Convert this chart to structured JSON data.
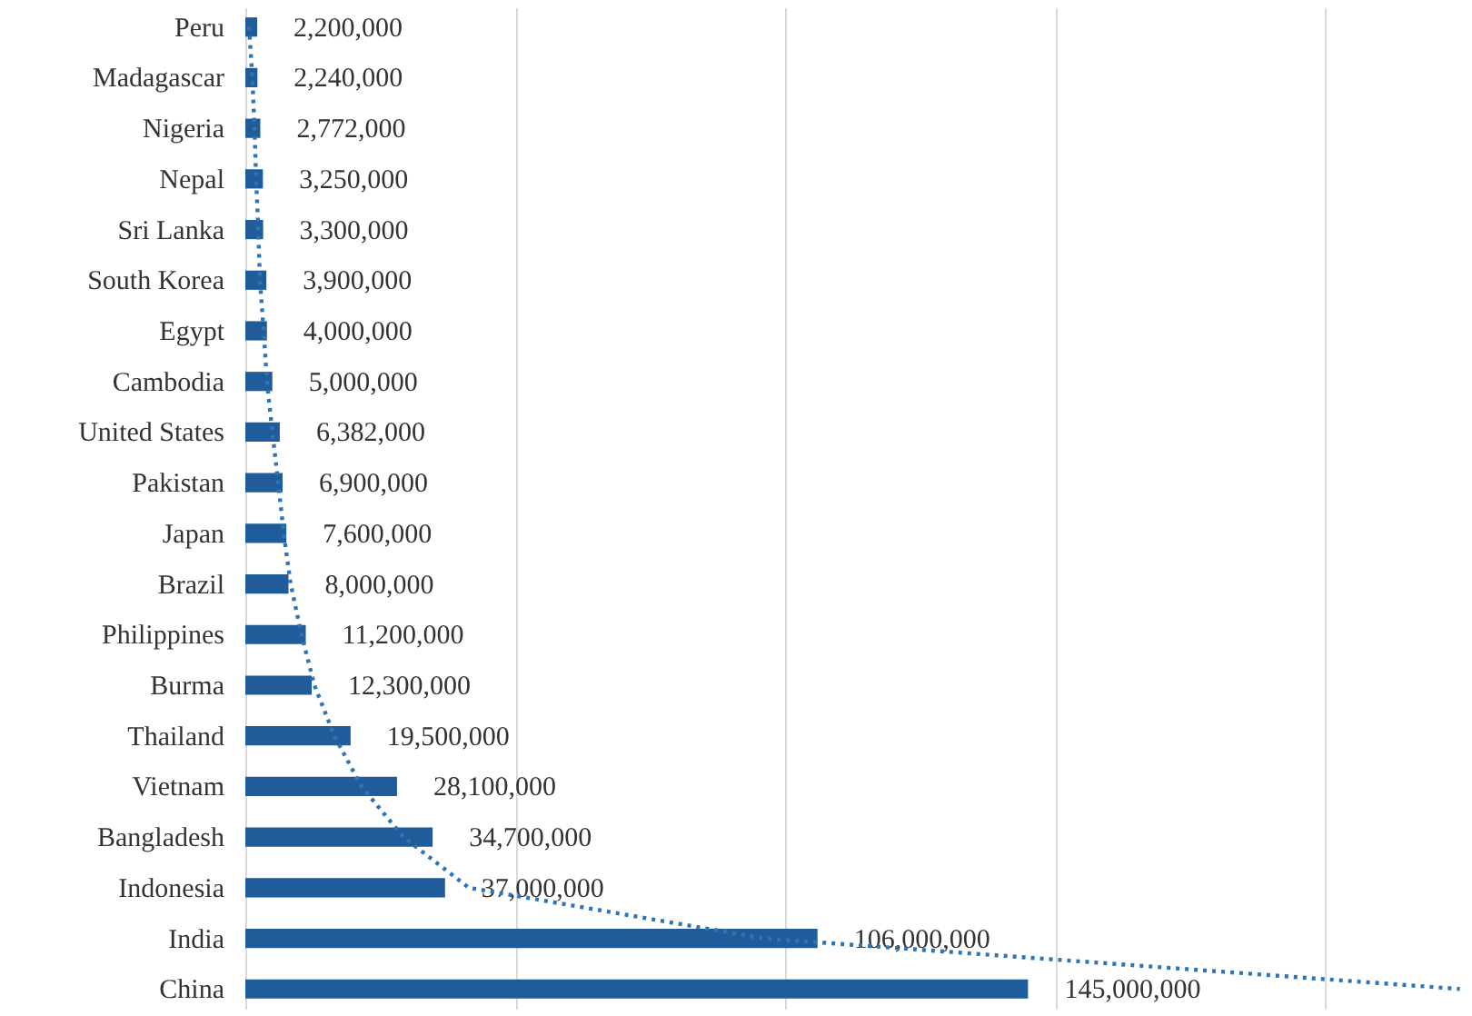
{
  "chart_data": {
    "type": "bar",
    "orientation": "horizontal",
    "categories": [
      "Peru",
      "Madagascar",
      "Nigeria",
      "Nepal",
      "Sri Lanka",
      "South Korea",
      "Egypt",
      "Cambodia",
      "United States",
      "Pakistan",
      "Japan",
      "Brazil",
      "Philippines",
      "Burma",
      "Thailand",
      "Vietnam",
      "Bangladesh",
      "Indonesia",
      "India",
      "China"
    ],
    "series": [
      {
        "color": "#1f5c99",
        "values": [
          2200000,
          2240000,
          2772000,
          3250000,
          3300000,
          3900000,
          4000000,
          5000000,
          6382000,
          6900000,
          7600000,
          8000000,
          11200000,
          12300000,
          19500000,
          28100000,
          34700000,
          37000000,
          106000000,
          145000000
        ],
        "value_labels": [
          "2,200,000",
          "2,240,000",
          "2,772,000",
          "3,250,000",
          "3,300,000",
          "3,900,000",
          "4,000,000",
          "5,000,000",
          "6,382,000",
          "6,900,000",
          "7,600,000",
          "8,000,000",
          "11,200,000",
          "12,300,000",
          "19,500,000",
          "28,100,000",
          "34,700,000",
          "37,000,000",
          "106,000,000",
          "145,000,000"
        ]
      },
      {
        "type": "line",
        "color": "#2e75b6",
        "line_style": "dotted",
        "values": [
          700000,
          1300000,
          1700000,
          2000000,
          2400000,
          2700000,
          3400000,
          4000000,
          5000000,
          6100000,
          7100000,
          8400000,
          10400000,
          12800000,
          16500000,
          21500000,
          29300000,
          41400000,
          96000000,
          225000000
        ]
      }
    ],
    "tick_labels": "y",
    "grid": "x"
  }
}
